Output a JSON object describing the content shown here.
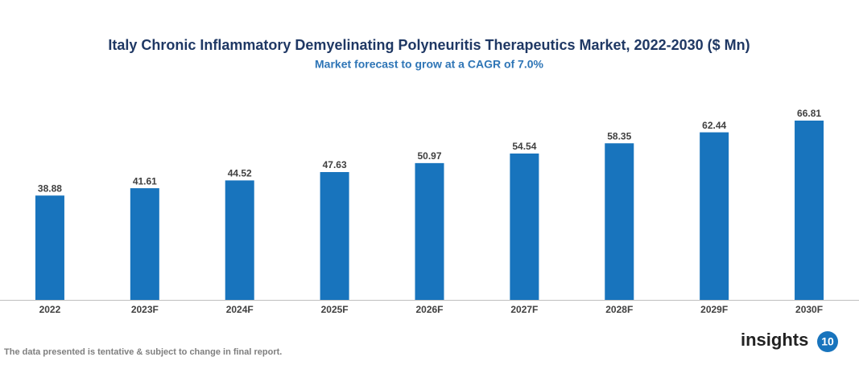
{
  "chart_data": {
    "type": "bar",
    "title": "Italy Chronic Inflammatory Demyelinating Polyneuritis Therapeutics Market, 2022-2030 ($ Mn)",
    "subtitle": "Market forecast to grow at a CAGR of 7.0%",
    "categories": [
      "2022",
      "2023F",
      "2024F",
      "2025F",
      "2026F",
      "2027F",
      "2028F",
      "2029F",
      "2030F"
    ],
    "values": [
      38.88,
      41.61,
      44.52,
      47.63,
      50.97,
      54.54,
      58.35,
      62.44,
      66.81
    ],
    "color": "#1874bd"
  },
  "footer": {
    "note": "The data presented is tentative & subject to change in final report.",
    "logo": "insights",
    "logo_badge": "10"
  }
}
